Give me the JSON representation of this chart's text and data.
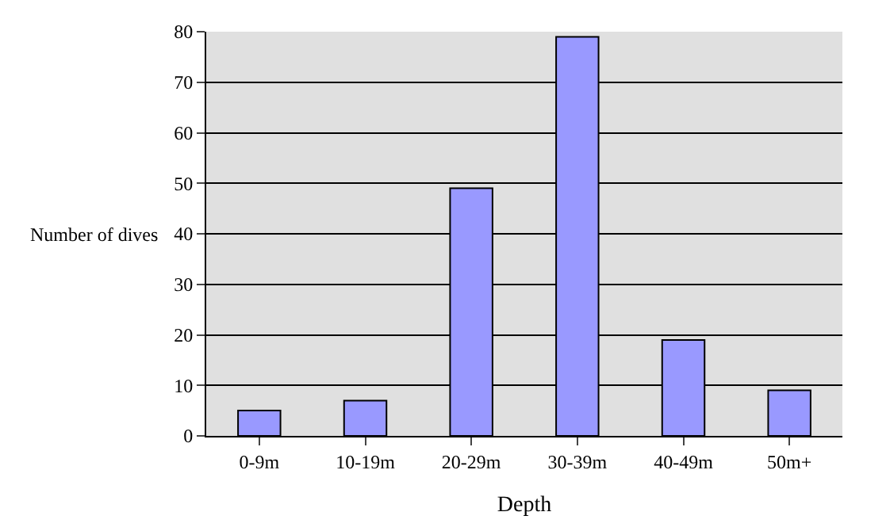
{
  "chart_data": {
    "type": "bar",
    "xlabel": "Depth",
    "ylabel": "Number of dives",
    "categories": [
      "0-9m",
      "10-19m",
      "20-29m",
      "30-39m",
      "40-49m",
      "50m+"
    ],
    "values": [
      5,
      7,
      49,
      79,
      19,
      9
    ],
    "color": "#9999ff",
    "ylim": [
      0,
      80
    ],
    "yticks": [
      0,
      10,
      20,
      30,
      40,
      50,
      60,
      70,
      80
    ],
    "grid": "y"
  }
}
